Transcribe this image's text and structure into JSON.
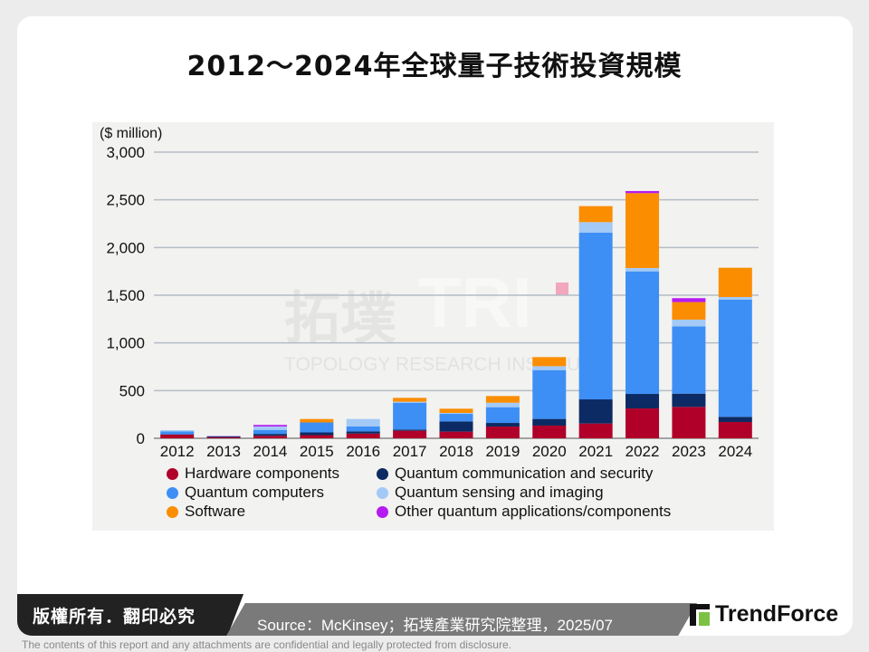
{
  "title": "2012～2024年全球量子技術投資規模",
  "watermark": {
    "cn": "拓墣",
    "abbr": "TRI",
    "en": "TOPOLOGY RESEARCH INSTITUTE"
  },
  "chart_data": {
    "type": "bar",
    "stacked": true,
    "title": "2012～2024年全球量子技術投資規模",
    "ylabel": "($ million)",
    "xlabel": "",
    "ylim": [
      0,
      3000
    ],
    "yticks": [
      "0",
      "500",
      "1,000",
      "1,500",
      "2,000",
      "2,500",
      "3,000"
    ],
    "ytick_values": [
      0,
      500,
      1000,
      1500,
      2000,
      2500,
      3000
    ],
    "grid": true,
    "legend_position": "bottom",
    "categories": [
      "2012",
      "2013",
      "2014",
      "2015",
      "2016",
      "2017",
      "2018",
      "2019",
      "2020",
      "2021",
      "2022",
      "2023",
      "2024"
    ],
    "series": [
      {
        "name": "Hardware components",
        "color": "#b0002a",
        "values": [
          39,
          10,
          26,
          33,
          49,
          79,
          70,
          123,
          133,
          155,
          313,
          329,
          171
        ]
      },
      {
        "name": "Quantum communication and security",
        "color": "#0c2a63",
        "values": [
          3,
          10,
          20,
          29,
          23,
          13,
          107,
          38,
          70,
          253,
          152,
          139,
          54
        ]
      },
      {
        "name": "Quantum computers",
        "color": "#3d8ff5",
        "values": [
          30,
          0,
          42,
          104,
          52,
          281,
          79,
          165,
          512,
          1747,
          1285,
          706,
          1228
        ]
      },
      {
        "name": "Quantum sensing and imaging",
        "color": "#a3c9f7",
        "values": [
          13,
          0,
          36,
          0,
          78,
          10,
          10,
          47,
          41,
          111,
          35,
          70,
          28
        ]
      },
      {
        "name": "Software",
        "color": "#fb8d00",
        "values": [
          0,
          0,
          0,
          36,
          0,
          41,
          44,
          70,
          95,
          168,
          785,
          184,
          307
        ]
      },
      {
        "name": "Other quantum applications/components",
        "color": "#b51af0",
        "values": [
          0,
          3,
          16,
          0,
          0,
          0,
          0,
          0,
          0,
          0,
          22,
          41,
          0
        ]
      }
    ]
  },
  "footer": {
    "copyright": "版權所有．翻印必究",
    "source": "Source：McKinsey；拓墣產業研究院整理，2025/07",
    "brand": "TrendForce",
    "disclaimer": "The contents of this report and any attachments are confidential and legally protected from disclosure."
  }
}
